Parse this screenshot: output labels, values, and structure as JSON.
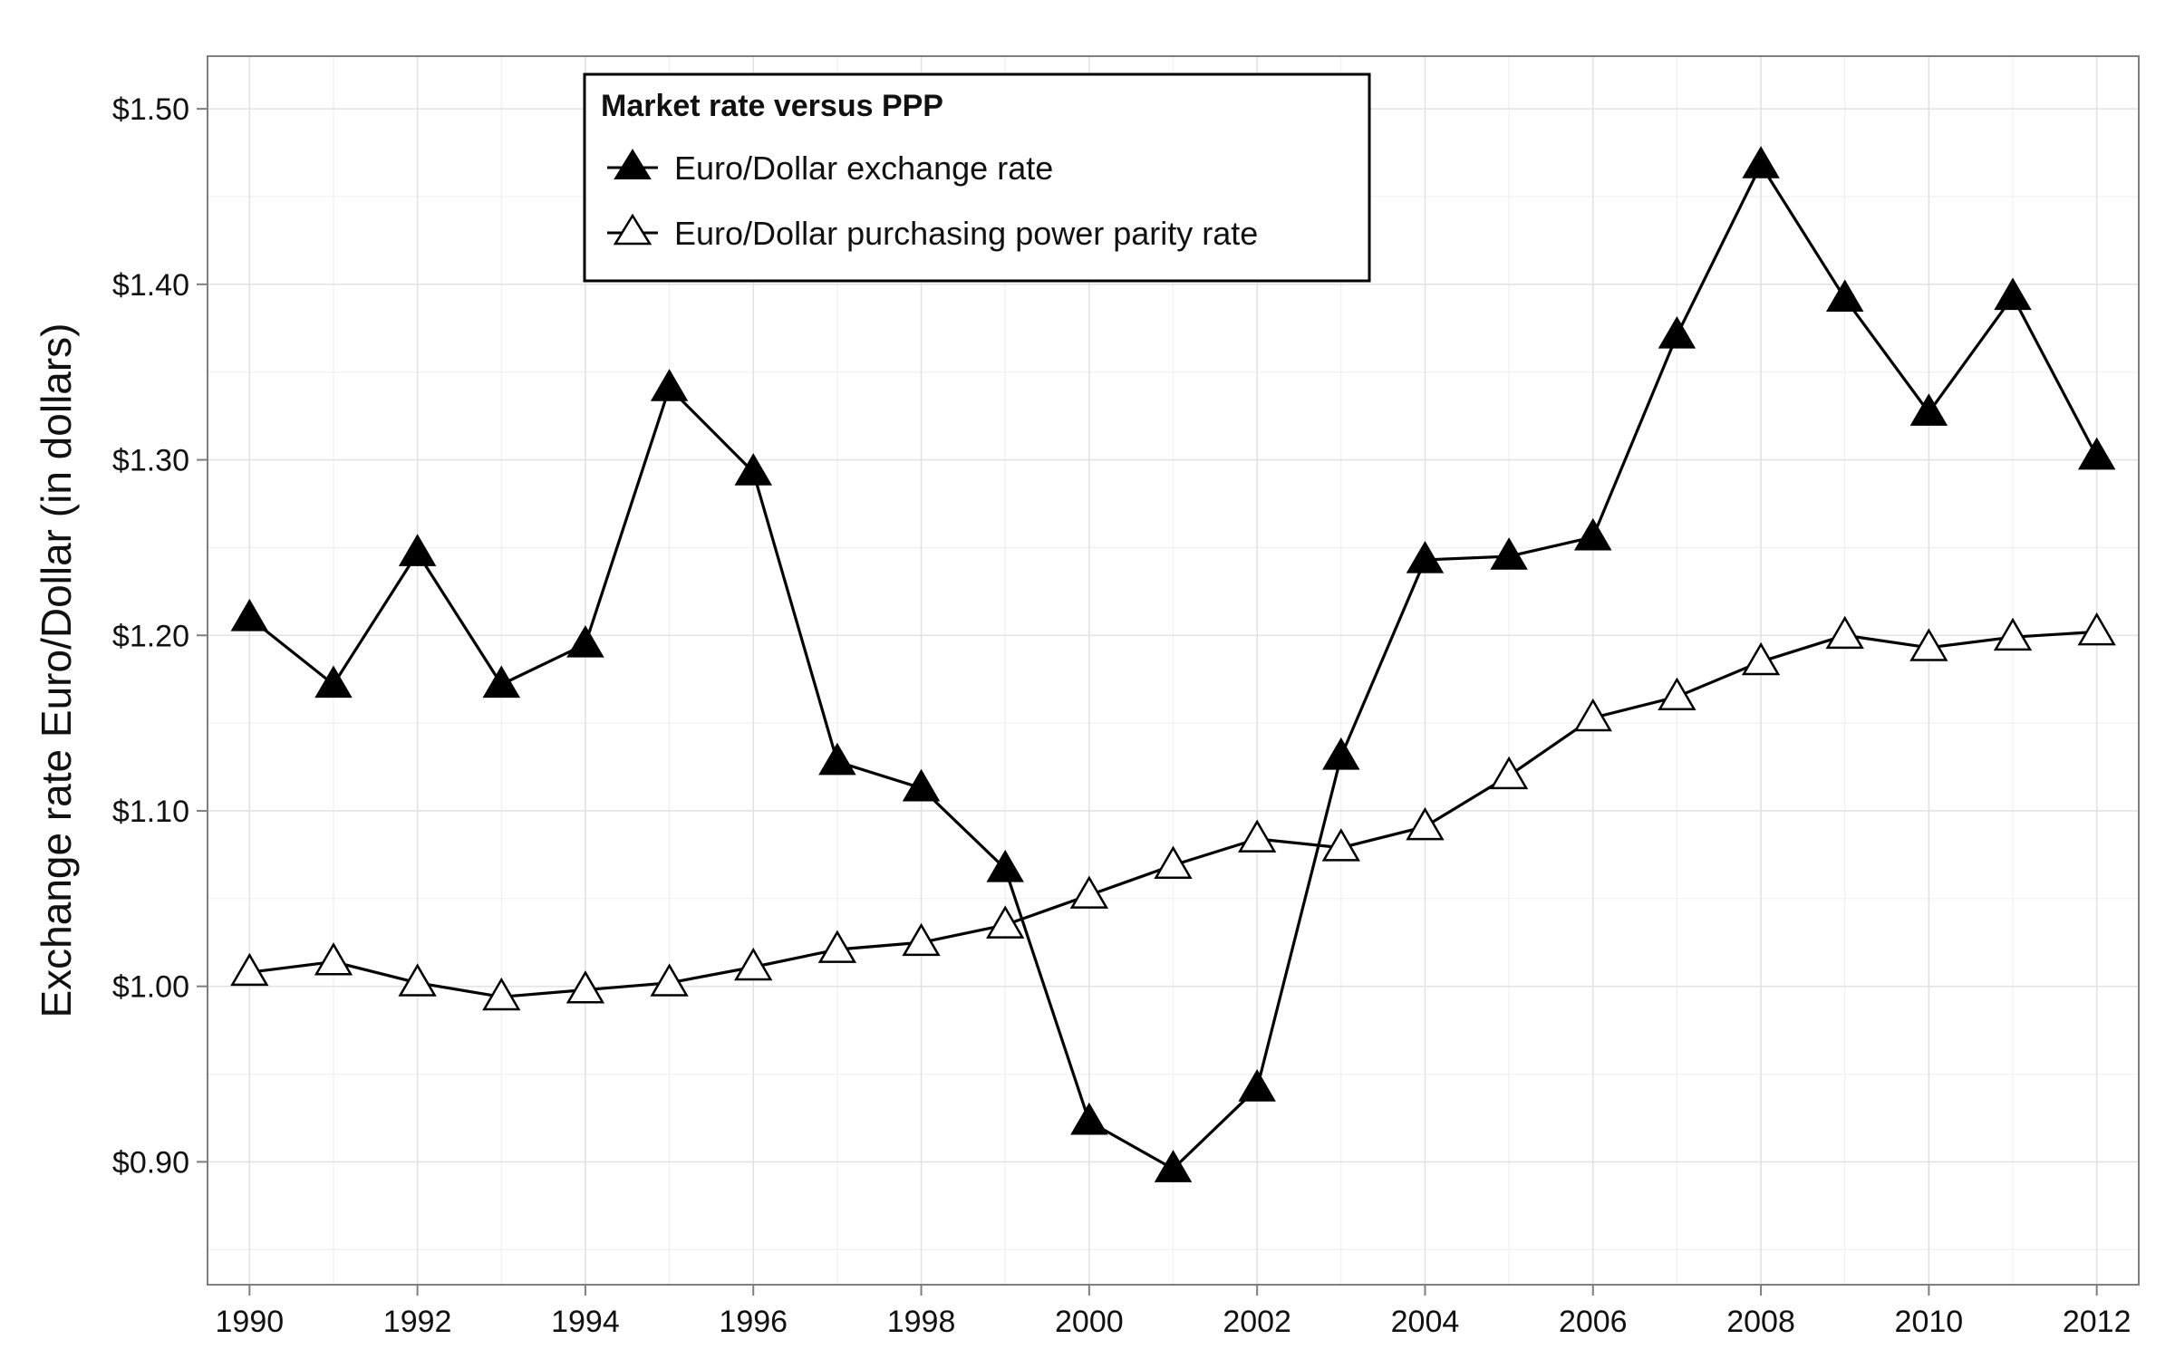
{
  "chart_data": {
    "type": "line",
    "title": "",
    "xlabel": "",
    "ylabel": "Exchange rate Euro/Dollar (in dollars)",
    "x": [
      1990,
      1991,
      1992,
      1993,
      1994,
      1995,
      1996,
      1997,
      1998,
      1999,
      2000,
      2001,
      2002,
      2003,
      2004,
      2005,
      2006,
      2007,
      2008,
      2009,
      2010,
      2011,
      2012
    ],
    "x_ticks": [
      "1990",
      "1992",
      "1994",
      "1996",
      "1998",
      "2000",
      "2002",
      "2004",
      "2006",
      "2008",
      "2010",
      "2012"
    ],
    "y_ticks": [
      "$0.90",
      "$1.00",
      "$1.10",
      "$1.20",
      "$1.30",
      "$1.40",
      "$1.50"
    ],
    "xlim": [
      1989.5,
      2012.5
    ],
    "ylim": [
      0.83,
      1.53
    ],
    "grid": true,
    "legend": {
      "title": "Market rate versus PPP",
      "position": "top-center"
    },
    "series": [
      {
        "name": "Euro/Dollar exchange rate",
        "marker": "filled-triangle",
        "color": "#000000",
        "values": [
          1.21,
          1.172,
          1.247,
          1.172,
          1.195,
          1.341,
          1.293,
          1.128,
          1.113,
          1.067,
          0.923,
          0.896,
          0.942,
          1.131,
          1.243,
          1.245,
          1.256,
          1.371,
          1.468,
          1.392,
          1.327,
          1.393,
          1.302
        ]
      },
      {
        "name": "Euro/Dollar purchasing power parity rate",
        "marker": "hollow-triangle",
        "color": "#000000",
        "values": [
          1.008,
          1.014,
          1.002,
          0.994,
          0.998,
          1.002,
          1.011,
          1.021,
          1.025,
          1.035,
          1.052,
          1.069,
          1.084,
          1.079,
          1.091,
          1.12,
          1.153,
          1.165,
          1.185,
          1.2,
          1.193,
          1.199,
          1.202
        ]
      }
    ]
  }
}
